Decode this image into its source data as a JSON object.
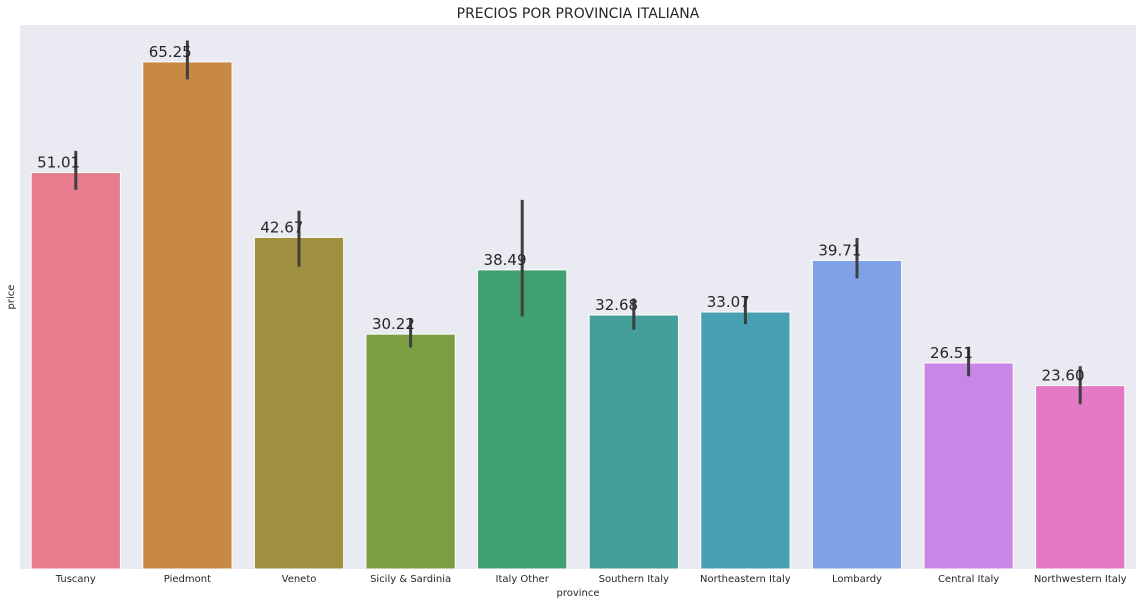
{
  "chart_data": {
    "type": "bar",
    "title": "PRECIOS POR PROVINCIA ITALIANA",
    "xlabel": "province",
    "ylabel": "price",
    "ylim": [
      0,
      70
    ],
    "grid": false,
    "legend": "none",
    "background": "#eaeaf2",
    "categories": [
      "Tuscany",
      "Piedmont",
      "Veneto",
      "Sicily & Sardinia",
      "Italy Other",
      "Southern Italy",
      "Northeastern Italy",
      "Lombardy",
      "Central Italy",
      "Northwestern Italy"
    ],
    "values": [
      51.01,
      65.25,
      42.67,
      30.22,
      38.49,
      32.68,
      33.07,
      39.71,
      26.51,
      23.6
    ],
    "value_labels": [
      "51.01",
      "65.25",
      "42.67",
      "30.22",
      "38.49",
      "32.68",
      "33.07",
      "39.71",
      "26.51",
      "23.60"
    ],
    "error_bars": [
      [
        48.8,
        53.8
      ],
      [
        63.0,
        68.0
      ],
      [
        38.9,
        46.1
      ],
      [
        28.5,
        32.3
      ],
      [
        32.5,
        47.5
      ],
      [
        30.8,
        34.8
      ],
      [
        31.5,
        35.1
      ],
      [
        37.4,
        42.6
      ],
      [
        24.8,
        28.6
      ],
      [
        21.2,
        26.1
      ]
    ],
    "colors": [
      "#e77c8d",
      "#c78844",
      "#a09140",
      "#7a9e40",
      "#41a070",
      "#449f9a",
      "#48a0b3",
      "#7fa1e6",
      "#c887e6",
      "#e479c6"
    ],
    "error_bar_color": "#3f3f3f"
  }
}
